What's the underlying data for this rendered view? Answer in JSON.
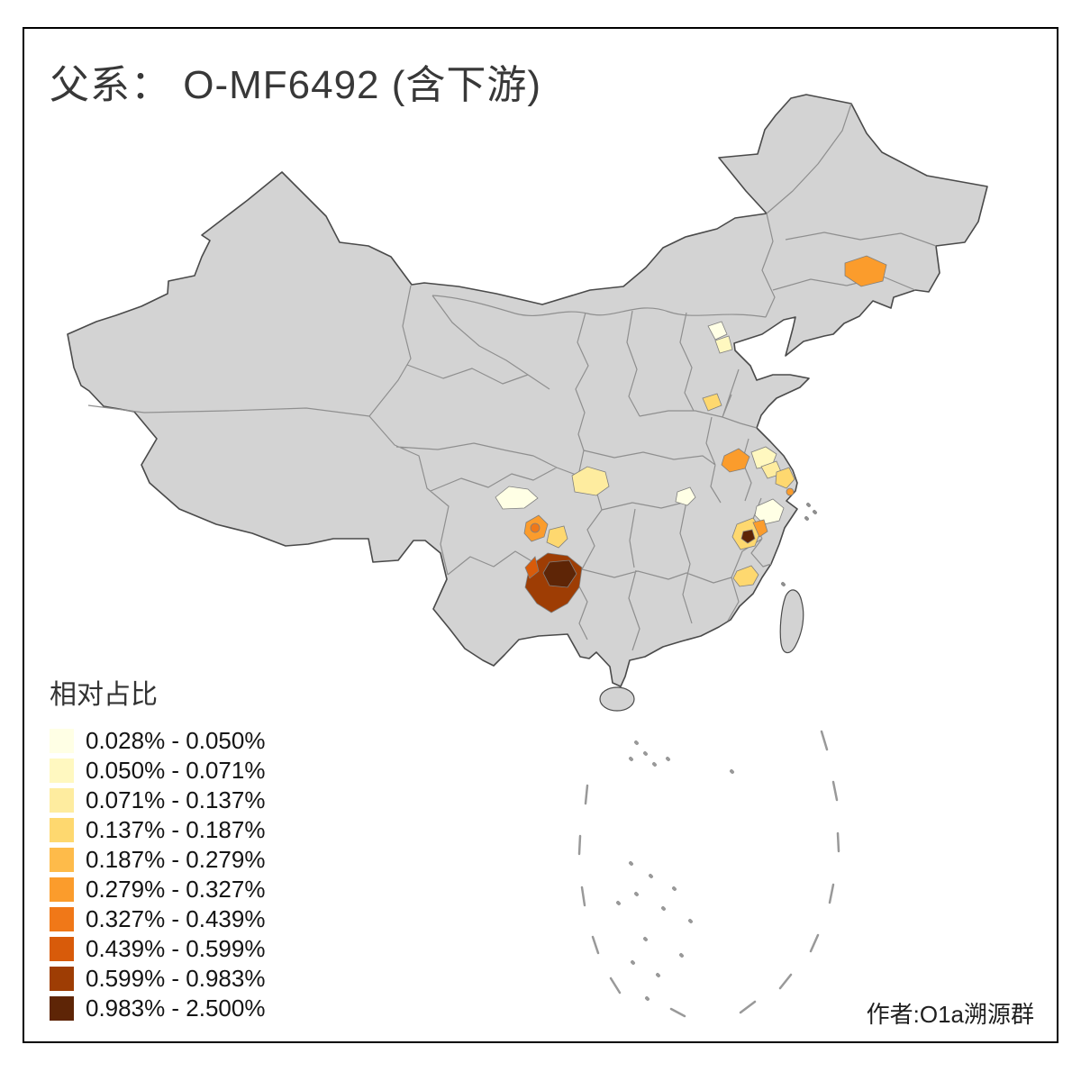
{
  "title": "父系： O-MF6492 (含下游)",
  "attribution": "作者:O1a溯源群",
  "legend": {
    "title": "相对占比",
    "classes": [
      {
        "label": "0.028% - 0.050%",
        "color": "#FFFFE5"
      },
      {
        "label": "0.050% - 0.071%",
        "color": "#FFF8C0"
      },
      {
        "label": "0.071% - 0.137%",
        "color": "#FEEC9F"
      },
      {
        "label": "0.137% - 0.187%",
        "color": "#FED86F"
      },
      {
        "label": "0.187% - 0.279%",
        "color": "#FEBB4A"
      },
      {
        "label": "0.279% - 0.327%",
        "color": "#FB9C2C"
      },
      {
        "label": "0.327% - 0.439%",
        "color": "#F07818"
      },
      {
        "label": "0.439% - 0.599%",
        "color": "#D85B0A"
      },
      {
        "label": "0.599% - 0.983%",
        "color": "#9E3D04"
      },
      {
        "label": "0.983% - 2.500%",
        "color": "#5E2506"
      }
    ]
  },
  "map": {
    "base_color": "#D3D3D3",
    "national_border_color": "#4A4A4A",
    "province_border_color": "#8F8F8F",
    "sea_detail_color": "#999999"
  },
  "chart_data": {
    "type": "choropleth",
    "title": "父系： O-MF6492 (含下游)",
    "legend_title": "相对占比",
    "unit": "%",
    "bins": [
      "0.028% - 0.050%",
      "0.050% - 0.071%",
      "0.071% - 0.137%",
      "0.137% - 0.187%",
      "0.187% - 0.279%",
      "0.279% - 0.327%",
      "0.327% - 0.439%",
      "0.439% - 0.599%",
      "0.599% - 0.983%",
      "0.983% - 2.500%"
    ],
    "regions": [
      {
        "id": "region-northeast-jilin",
        "bin_index": 5
      },
      {
        "id": "region-beijing-vicinity-a",
        "bin_index": 0
      },
      {
        "id": "region-beijing-vicinity-b",
        "bin_index": 1
      },
      {
        "id": "region-north-china-plain",
        "bin_index": 3
      },
      {
        "id": "region-sichuan-northeast",
        "bin_index": 2
      },
      {
        "id": "region-sichuan-west",
        "bin_index": 0
      },
      {
        "id": "region-sichuan-south",
        "bin_index": 5
      },
      {
        "id": "region-sichuan-south-core",
        "bin_index": 6
      },
      {
        "id": "region-guizhou-west",
        "bin_index": 3
      },
      {
        "id": "region-yunnan-northeast",
        "bin_index": 8
      },
      {
        "id": "region-yunnan-northeast-core",
        "bin_index": 9
      },
      {
        "id": "region-yunnan-northeast-west",
        "bin_index": 7
      },
      {
        "id": "region-hubei-east",
        "bin_index": 0
      },
      {
        "id": "region-anhui-central",
        "bin_index": 5
      },
      {
        "id": "region-jiangsu-a",
        "bin_index": 1
      },
      {
        "id": "region-jiangsu-b",
        "bin_index": 2
      },
      {
        "id": "region-shanghai-vicinity",
        "bin_index": 3
      },
      {
        "id": "region-shanghai-dot",
        "bin_index": 5
      },
      {
        "id": "region-zhejiang-north",
        "bin_index": 0
      },
      {
        "id": "region-anhui-south",
        "bin_index": 3
      },
      {
        "id": "region-anhui-south-core",
        "bin_index": 9
      },
      {
        "id": "region-anhui-south-east",
        "bin_index": 5
      },
      {
        "id": "region-fujian-north",
        "bin_index": 3
      }
    ]
  }
}
